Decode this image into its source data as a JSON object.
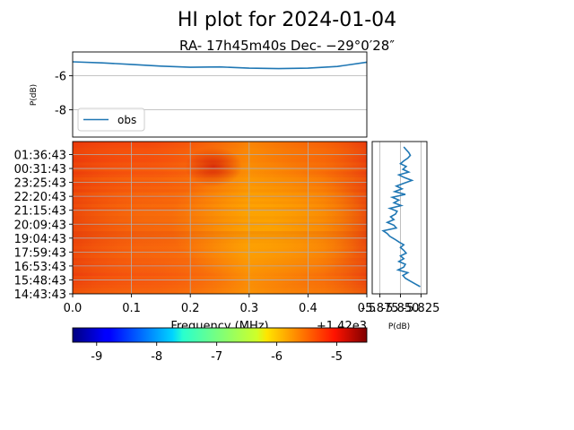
{
  "figure": {
    "title": "HI plot for 2024-01-04",
    "subtitle": "RA- 17h45m40s Dec- −29°0′28″"
  },
  "chart_data": [
    {
      "type": "line",
      "ylabel": "P(dB)",
      "ylim": [
        -9.6,
        -4.6
      ],
      "xlim": [
        0.0,
        0.5
      ],
      "yticks": [
        "-6",
        "-8"
      ],
      "ytick_values": [
        -6,
        -8
      ],
      "grid": "horizontal",
      "legend": {
        "placement": "lower-left",
        "entries": [
          "obs"
        ]
      },
      "series": [
        {
          "name": "obs",
          "color": "#1f77b4",
          "x": [
            0.0,
            0.05,
            0.1,
            0.15,
            0.2,
            0.25,
            0.3,
            0.35,
            0.4,
            0.45,
            0.5
          ],
          "y": [
            -5.18,
            -5.24,
            -5.33,
            -5.43,
            -5.5,
            -5.48,
            -5.55,
            -5.58,
            -5.55,
            -5.45,
            -5.2
          ]
        }
      ]
    },
    {
      "type": "heatmap",
      "colormap": "jet",
      "xlabel": "Frequency (MHz)",
      "x_offset_label": "+1.42e3",
      "xlim": [
        0.0,
        0.5
      ],
      "xticks": [
        "0.0",
        "0.1",
        "0.2",
        "0.3",
        "0.4",
        "0.5"
      ],
      "xtick_values": [
        0.0,
        0.1,
        0.2,
        0.3,
        0.4,
        0.5
      ],
      "yticks": [
        "01:36:43",
        "00:31:43",
        "23:25:43",
        "22:20:43",
        "21:15:43",
        "20:09:43",
        "19:04:43",
        "17:59:43",
        "16:53:43",
        "15:48:43",
        "14:43:43"
      ],
      "grid": true,
      "clim": [
        -9.4,
        -4.5
      ]
    },
    {
      "type": "line",
      "orientation": "vertical",
      "xlabel": "P(dB)",
      "xticks": [
        "-5.875",
        "-5.850",
        "-5.825"
      ],
      "xtick_values": [
        -5.875,
        -5.85,
        -5.825
      ],
      "xlim": [
        -5.88,
        -5.82
      ],
      "color": "#1f77b4",
      "profile": [
        -5.846,
        -5.843,
        -5.84,
        -5.838,
        -5.841,
        -5.846,
        -5.85,
        -5.843,
        -5.847,
        -5.84,
        -5.852,
        -5.845,
        -5.836,
        -5.846,
        -5.855,
        -5.848,
        -5.857,
        -5.844,
        -5.86,
        -5.852,
        -5.858,
        -5.849,
        -5.863,
        -5.854,
        -5.856,
        -5.862,
        -5.858,
        -5.866,
        -5.858,
        -5.855,
        -5.871,
        -5.866,
        -5.863,
        -5.857,
        -5.852,
        -5.846,
        -5.85,
        -5.846,
        -5.843,
        -5.85,
        -5.846,
        -5.852,
        -5.844,
        -5.846,
        -5.853,
        -5.841,
        -5.847,
        -5.844,
        -5.838,
        -5.832,
        -5.826
      ]
    },
    {
      "type": "colorbar",
      "colormap": "jet",
      "range": [
        -9.4,
        -4.5
      ],
      "ticks": [
        "-9",
        "-8",
        "-7",
        "-6",
        "-5"
      ],
      "tick_values": [
        -9,
        -8,
        -7,
        -6,
        -5
      ]
    }
  ]
}
